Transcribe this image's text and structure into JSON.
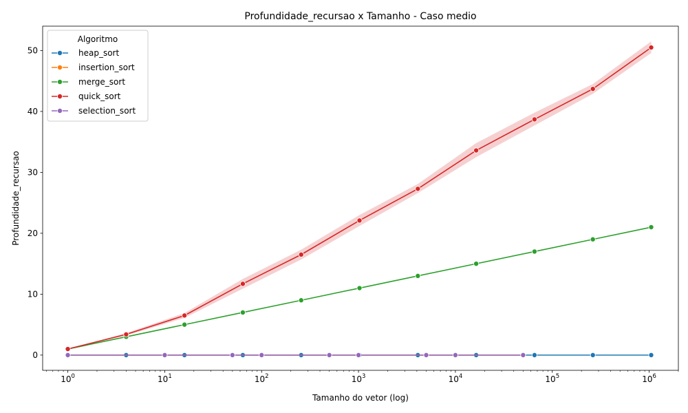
{
  "chart_data": {
    "type": "line",
    "title": "Profundidade_recursao x Tamanho - Caso medio",
    "xlabel": "Tamanho do vetor (log)",
    "ylabel": "Profundidade_recursao",
    "xscale": "log",
    "xlim": [
      0.55,
      2000000
    ],
    "ylim": [
      -2.5,
      54
    ],
    "x_ticks": [
      1,
      10,
      100,
      1000,
      10000,
      100000,
      1000000
    ],
    "x_tick_labels": [
      {
        "base": "10",
        "exp": "0"
      },
      {
        "base": "10",
        "exp": "1"
      },
      {
        "base": "10",
        "exp": "2"
      },
      {
        "base": "10",
        "exp": "3"
      },
      {
        "base": "10",
        "exp": "4"
      },
      {
        "base": "10",
        "exp": "5"
      },
      {
        "base": "10",
        "exp": "6"
      }
    ],
    "y_ticks": [
      0,
      10,
      20,
      30,
      40,
      50
    ],
    "grid": false,
    "legend": {
      "title": "Algoritmo",
      "position": "top-left"
    },
    "series": [
      {
        "name": "heap_sort",
        "color": "#1f77b4",
        "x": [
          1,
          4,
          16,
          64,
          256,
          1024,
          4096,
          16384,
          65536,
          262144,
          1048576
        ],
        "y": [
          0,
          0,
          0,
          0,
          0,
          0,
          0,
          0,
          0,
          0,
          0
        ]
      },
      {
        "name": "insertion_sort",
        "color": "#ff7f0e",
        "x": [
          1,
          10,
          50,
          100,
          500,
          1000,
          5000,
          10000,
          50000
        ],
        "y": [
          0,
          0,
          0,
          0,
          0,
          0,
          0,
          0,
          0
        ]
      },
      {
        "name": "merge_sort",
        "color": "#2ca02c",
        "x": [
          1,
          4,
          16,
          64,
          256,
          1024,
          4096,
          16384,
          65536,
          262144,
          1048576
        ],
        "y": [
          1,
          3,
          5,
          7,
          9,
          11,
          13,
          15,
          17,
          19,
          21
        ]
      },
      {
        "name": "quick_sort",
        "color": "#d62728",
        "x": [
          1,
          4,
          16,
          64,
          256,
          1024,
          4096,
          16384,
          65536,
          262144,
          1048576
        ],
        "y": [
          1,
          3.4,
          6.5,
          11.7,
          16.5,
          22.1,
          27.3,
          33.6,
          38.7,
          43.7,
          50.5
        ],
        "ci_low": [
          1,
          3.2,
          6.1,
          10.9,
          15.7,
          21.2,
          26.6,
          32.5,
          37.7,
          42.9,
          49.6
        ],
        "ci_high": [
          1,
          3.6,
          6.9,
          12.5,
          17.3,
          23.0,
          28.1,
          34.8,
          39.8,
          44.5,
          51.5
        ]
      },
      {
        "name": "selection_sort",
        "color": "#9467bd",
        "x": [
          1,
          10,
          50,
          100,
          500,
          1000,
          5000,
          10000,
          50000
        ],
        "y": [
          0,
          0,
          0,
          0,
          0,
          0,
          0,
          0,
          0
        ]
      }
    ]
  }
}
